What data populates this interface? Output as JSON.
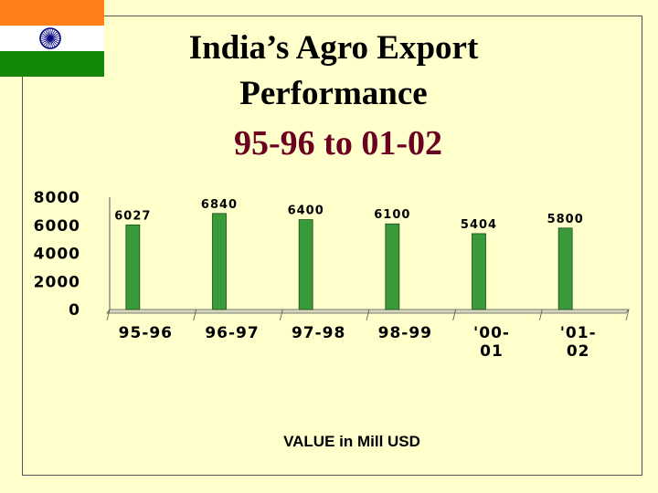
{
  "slide": {
    "title_line1": "India’s Agro Export",
    "title_line2": "Performance",
    "subtitle": "95-96 to 01-02",
    "note": "VALUE in Mill USD"
  },
  "flag": {
    "name": "India flag",
    "colors": {
      "saffron": "#ff7f1a",
      "white": "#ffffff",
      "green": "#138808",
      "chakra": "#000080"
    }
  },
  "colors": {
    "background": "#ffffcc",
    "bar": "#3a9a3a",
    "subtitle": "#6b0020"
  },
  "chart_data": {
    "type": "bar",
    "categories": [
      [
        "95-96"
      ],
      [
        "96-97"
      ],
      [
        "97-98"
      ],
      [
        "98-99"
      ],
      [
        "'00-",
        "01"
      ],
      [
        "'01-",
        "02"
      ]
    ],
    "values": [
      6027,
      6840,
      6400,
      6100,
      5404,
      5800
    ],
    "value_labels": [
      "6027",
      "6840",
      "6400",
      "6100",
      "5404",
      "5800"
    ],
    "yticks": [
      0,
      2000,
      4000,
      6000,
      8000
    ],
    "ylim": [
      0,
      8000
    ],
    "xlabel": "",
    "ylabel": "",
    "grid": false,
    "legend": "none"
  }
}
